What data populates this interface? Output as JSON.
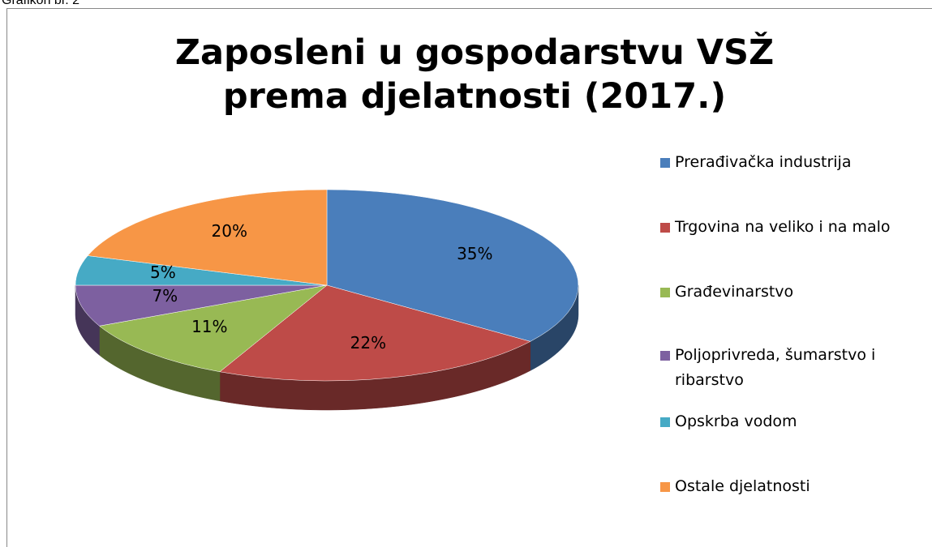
{
  "caption": "Grafikon br. 2",
  "chart_data": {
    "type": "pie3d",
    "title": "Zaposleni u gospodarstvu VSŽ prema djelatnosti (2017.)",
    "categories": [
      "Prerađivačka industrija",
      "Trgovina na veliko i na malo",
      "Građevinarstvo",
      "Poljoprivreda, šumarstvo i ribarstvo",
      "Opskrba vodom",
      "Ostale djelatnosti"
    ],
    "values": [
      35,
      22,
      11,
      7,
      5,
      20
    ],
    "value_labels": [
      "35%",
      "22%",
      "11%",
      "7%",
      "5%",
      "20%"
    ],
    "colors": [
      "#4a7ebb",
      "#be4b48",
      "#98b954",
      "#7d60a0",
      "#46aac5",
      "#f79646"
    ],
    "legend": "right"
  }
}
